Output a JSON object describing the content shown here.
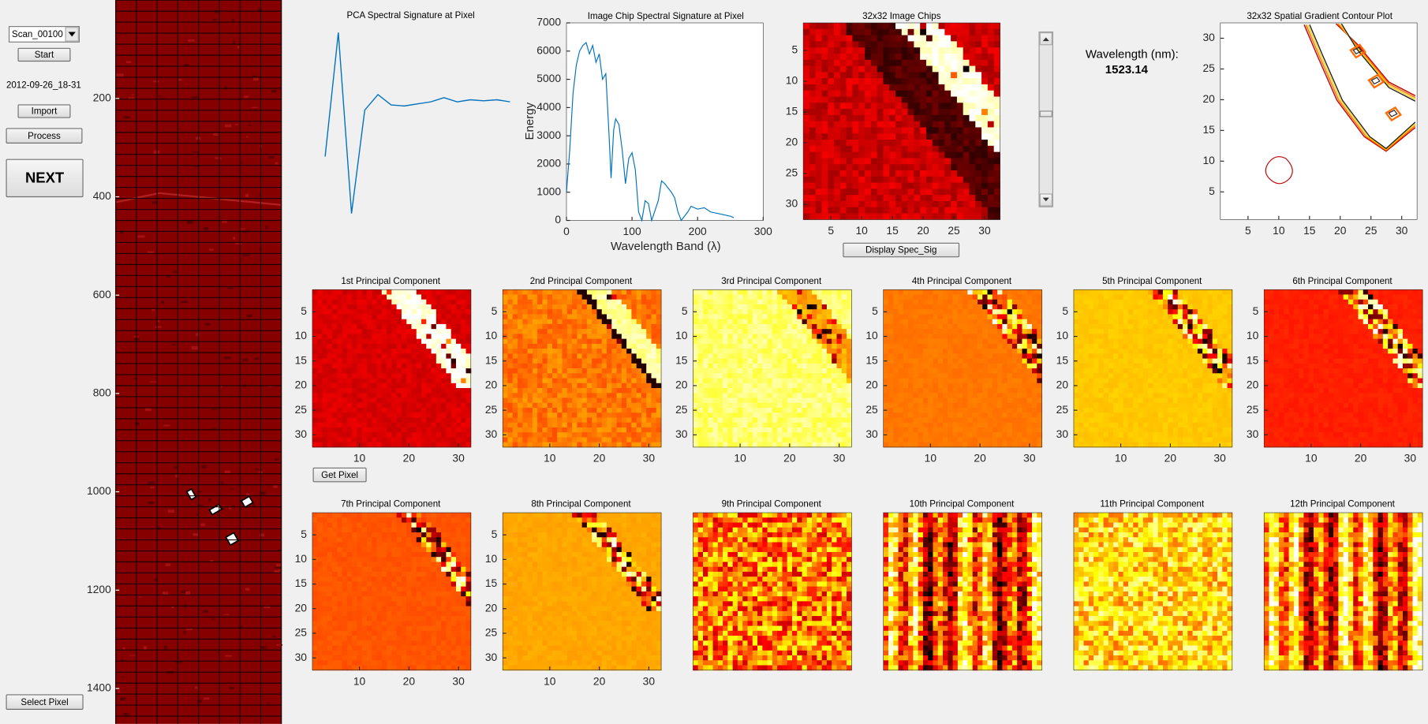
{
  "controls": {
    "scan_select": "Scan_00100",
    "start": "Start",
    "timestamp": "2012-09-26_18-31",
    "import": "Import",
    "process": "Process",
    "next": "NEXT",
    "select_pixel": "Select Pixel",
    "get_pixel": "Get Pixel",
    "display_spec_sig": "Display Spec_Sig"
  },
  "wavelength": {
    "label": "Wavelength (nm):",
    "value": 1523.14
  },
  "overview_image": {
    "ylim": [
      0,
      1472
    ],
    "yticks": [
      200,
      400,
      600,
      800,
      1000,
      1200,
      1400
    ]
  },
  "chart_data": [
    {
      "type": "line",
      "title": "PCA Spectral Signature at Pixel",
      "color": "#0072bd",
      "ylim": [
        -0.8,
        1.05
      ],
      "values": [
        -0.2,
        1.0,
        -0.75,
        0.25,
        0.4,
        0.3,
        0.29,
        0.31,
        0.33,
        0.37,
        0.33,
        0.35,
        0.34,
        0.35,
        0.33
      ]
    },
    {
      "type": "line",
      "title": "Image Chip Spectral Signature at Pixel",
      "xlabel": "Wavelength Band (λ)",
      "ylabel": "Energy",
      "color": "#0072bd",
      "xlim": [
        0,
        300
      ],
      "ylim": [
        0,
        7000
      ],
      "xticks": [
        0,
        100,
        200,
        300
      ],
      "yticks": [
        0,
        1000,
        2000,
        3000,
        4000,
        5000,
        6000,
        7000
      ],
      "x": [
        0,
        5,
        10,
        15,
        20,
        25,
        30,
        35,
        40,
        45,
        50,
        55,
        60,
        65,
        68,
        72,
        75,
        80,
        85,
        90,
        95,
        100,
        105,
        110,
        115,
        120,
        125,
        130,
        140,
        145,
        150,
        160,
        165,
        170,
        175,
        185,
        190,
        200,
        210,
        220,
        230,
        240,
        250,
        255
      ],
      "values": [
        1000,
        2500,
        4500,
        5500,
        6000,
        6200,
        6300,
        5900,
        6200,
        5600,
        5900,
        5000,
        5200,
        3000,
        1500,
        3200,
        3600,
        3400,
        2500,
        1300,
        2200,
        2400,
        1800,
        300,
        0,
        700,
        600,
        0,
        700,
        1400,
        1300,
        1000,
        800,
        300,
        0,
        300,
        500,
        400,
        450,
        300,
        250,
        200,
        150,
        100
      ]
    }
  ],
  "image_chips": {
    "title": "32x32 Image Chips",
    "xlim": [
      0.5,
      32.5
    ],
    "ylim": [
      0.5,
      32.5
    ],
    "xticks": [
      5,
      10,
      15,
      20,
      25,
      30
    ],
    "yticks": [
      5,
      10,
      15,
      20,
      25,
      30
    ]
  },
  "contour_plot": {
    "title": "32x32 Spatial Gradient Contour Plot",
    "xlim": [
      0.5,
      32.5
    ],
    "ylim": [
      0.5,
      32.5
    ],
    "xticks": [
      5,
      10,
      15,
      20,
      25,
      30
    ],
    "yticks": [
      5,
      10,
      15,
      20,
      25,
      30
    ]
  },
  "components": [
    {
      "title": "1st Principal Component",
      "xticks": [
        10,
        20,
        30
      ],
      "yticks": [
        5,
        10,
        15,
        20,
        25,
        30
      ]
    },
    {
      "title": "2nd Principal Component",
      "xticks": [
        10,
        20,
        30
      ],
      "yticks": [
        5,
        10,
        15,
        20,
        25,
        30
      ]
    },
    {
      "title": "3rd Principal Component",
      "xticks": [
        10,
        20,
        30
      ],
      "yticks": [
        5,
        10,
        15,
        20,
        25,
        30
      ]
    },
    {
      "title": "4th Principal Component",
      "xticks": [
        10,
        20,
        30
      ],
      "yticks": [
        5,
        10,
        15,
        20,
        25,
        30
      ]
    },
    {
      "title": "5th Principal Component",
      "xticks": [
        10,
        20,
        30
      ],
      "yticks": [
        5,
        10,
        15,
        20,
        25,
        30
      ]
    },
    {
      "title": "6th Principal Component",
      "xticks": [
        10,
        20,
        30
      ],
      "yticks": [
        5,
        10,
        15,
        20,
        25,
        30
      ]
    },
    {
      "title": "7th Principal Component",
      "xticks": [
        10,
        20,
        30
      ],
      "yticks": [
        5,
        10,
        15,
        20,
        25,
        30
      ]
    },
    {
      "title": "8th Principal Component",
      "xticks": [
        10,
        20,
        30
      ],
      "yticks": [
        5,
        10,
        15,
        20,
        25,
        30
      ]
    },
    {
      "title": "9th Principal Component"
    },
    {
      "title": "10th Principal Component"
    },
    {
      "title": "11th Principal Component"
    },
    {
      "title": "12th Principal Component"
    }
  ]
}
